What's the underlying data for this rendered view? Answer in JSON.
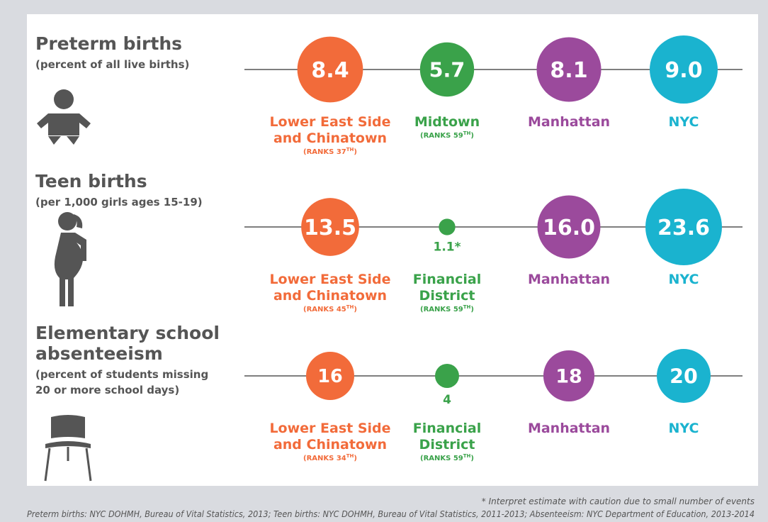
{
  "sections": [
    {
      "title": [
        "Preterm births"
      ],
      "subtitle": [
        "(percent of all live births)"
      ],
      "items": [
        {
          "value": 8.4,
          "label": [
            "Lower East Side",
            "and Chinatown"
          ],
          "rank": [
            "(RANKS 37",
            "TH",
            ")"
          ]
        },
        {
          "value": 5.7,
          "label": [
            "Midtown"
          ],
          "rank": [
            "(RANKS 59",
            "TH",
            ")"
          ]
        },
        {
          "value": 8.1,
          "label": [
            "Manhattan"
          ]
        },
        {
          "value": 9.0,
          "value_label": "9.0",
          "label": [
            "NYC"
          ]
        }
      ]
    },
    {
      "title": [
        "Teen births"
      ],
      "subtitle": [
        "(per 1,000 girls ages 15-19)"
      ],
      "items": [
        {
          "value": 13.5,
          "label": [
            "Lower East Side",
            "and Chinatown"
          ],
          "rank": [
            "(RANKS 45",
            "TH",
            ")"
          ]
        },
        {
          "value": 1.1,
          "value_label": "1.1*",
          "label": [
            "Financial",
            "District"
          ],
          "rank": [
            "(RANKS 59",
            "TH",
            ")"
          ]
        },
        {
          "value": 16.0,
          "value_label": "16.0",
          "label": [
            "Manhattan"
          ]
        },
        {
          "value": 23.6,
          "label": [
            "NYC"
          ]
        }
      ]
    },
    {
      "title": [
        "Elementary school",
        "absenteeism"
      ],
      "subtitle": [
        "(percent of students missing",
        "20 or more school days)"
      ],
      "items": [
        {
          "value": 16,
          "label": [
            "Lower East Side",
            "and Chinatown"
          ],
          "rank": [
            "(RANKS 34",
            "TH",
            ")"
          ]
        },
        {
          "value": 4,
          "label": [
            "Financial",
            "District"
          ],
          "rank": [
            "(RANKS 59",
            "TH",
            ")"
          ]
        },
        {
          "value": 18,
          "label": [
            "Manhattan"
          ]
        },
        {
          "value": 20,
          "label": [
            "NYC"
          ]
        }
      ]
    }
  ],
  "colors": [
    "#f26b3a",
    "#3aa24a",
    "#9b4a9c",
    "#1ab3cf"
  ],
  "footnote": "* Interpret estimate with caution due to small number of events",
  "sources": "Preterm births: NYC DOHMH, Bureau of Vital Statistics, 2013; Teen births: NYC DOHMH, Bureau of Vital Statistics, 2011-2013; Absenteeism: NYC Department of Education, 2013-2014"
}
